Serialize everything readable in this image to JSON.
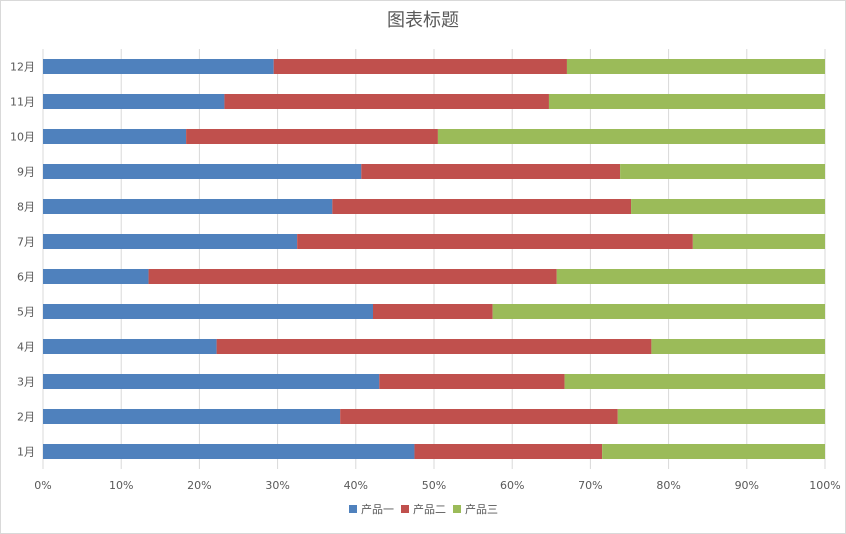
{
  "chart_data": {
    "type": "bar",
    "orientation": "horizontal",
    "stacked": "percent",
    "title": "图表标题",
    "categories": [
      "1月",
      "2月",
      "3月",
      "4月",
      "5月",
      "6月",
      "7月",
      "8月",
      "9月",
      "10月",
      "11月",
      "12月"
    ],
    "series": [
      {
        "name": "产品一",
        "color": "#4f81bd",
        "values": [
          47.5,
          38.0,
          43.0,
          22.2,
          42.2,
          13.5,
          32.5,
          37.0,
          40.7,
          18.3,
          23.2,
          29.5
        ]
      },
      {
        "name": "产品二",
        "color": "#c0504d",
        "values": [
          24.0,
          35.5,
          23.7,
          55.6,
          15.3,
          52.2,
          50.6,
          38.2,
          33.1,
          32.2,
          41.5,
          37.5
        ]
      },
      {
        "name": "产品三",
        "color": "#9bbb59",
        "values": [
          28.5,
          26.5,
          33.3,
          22.2,
          42.5,
          34.3,
          16.9,
          24.8,
          26.2,
          49.5,
          35.3,
          33.0
        ]
      }
    ],
    "x_ticks": [
      "0%",
      "10%",
      "20%",
      "30%",
      "40%",
      "50%",
      "60%",
      "70%",
      "80%",
      "90%",
      "100%"
    ],
    "xlim": [
      0,
      100
    ],
    "grid": true,
    "legend_position": "bottom"
  }
}
